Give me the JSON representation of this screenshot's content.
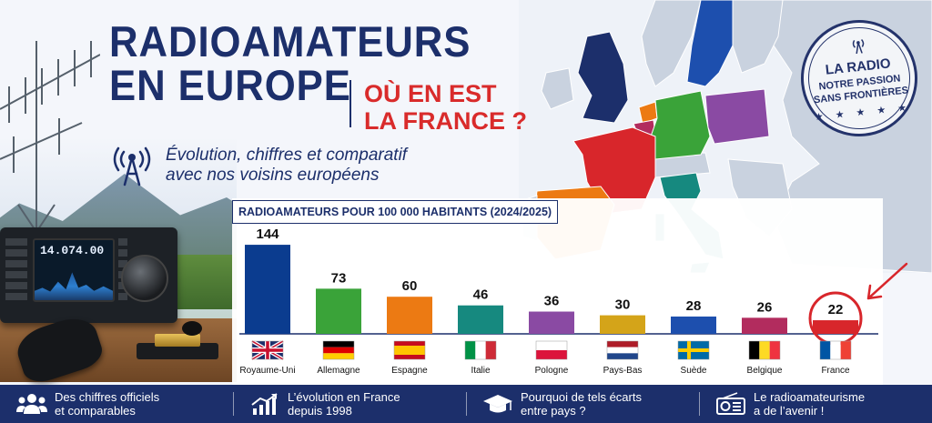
{
  "header": {
    "title_line1": "RADIOAMATEURS",
    "title_line2": "EN EUROPE",
    "subtitle_line1": "OÙ EN EST",
    "subtitle_line2": "LA FRANCE ?",
    "tagline_line1": "Évolution, chiffres et comparatif",
    "tagline_line2": "avec nos voisins européens"
  },
  "stamp": {
    "line1": "LA RADIO",
    "line2": "NOTRE PASSION",
    "line3": "SANS FRONTIÈRES",
    "stars": "★ ★ ★ ★ ★"
  },
  "radio": {
    "frequency": "14.074.00"
  },
  "chart_data": {
    "type": "bar",
    "title": "RADIOAMATEURS POUR 100 000 HABITANTS (2024/2025)",
    "categories": [
      "Royaume-Uni",
      "Allemagne",
      "Espagne",
      "Italie",
      "Pologne",
      "Pays-Bas",
      "Suède",
      "Belgique",
      "France"
    ],
    "values": [
      144,
      73,
      60,
      46,
      36,
      30,
      28,
      26,
      22
    ],
    "colors": [
      "#0b3c8f",
      "#3aa339",
      "#ec7a13",
      "#16897f",
      "#8a4aa3",
      "#d4a419",
      "#1d4fae",
      "#b22c5e",
      "#d8262b"
    ],
    "flags": [
      "flag-uk",
      "flag-de",
      "flag-es",
      "flag-it",
      "flag-pl",
      "flag-nl",
      "flag-se",
      "flag-be",
      "flag-fr"
    ],
    "highlight": "France",
    "highlight_color": "#d8262b",
    "ylim": [
      0,
      150
    ],
    "xlabel": "",
    "ylabel": "",
    "grid": false
  },
  "footer": {
    "items": [
      {
        "icon": "people-icon",
        "line1": "Des chiffres officiels",
        "line2": "et comparables"
      },
      {
        "icon": "growth-chart-icon",
        "line1": "L’évolution en France",
        "line2": "depuis 1998"
      },
      {
        "icon": "graduation-cap-icon",
        "line1": "Pourquoi de tels écarts",
        "line2": "entre pays ?"
      },
      {
        "icon": "radio-icon",
        "line1": "Le radioamateurisme",
        "line2": "a de l’avenir !"
      }
    ]
  }
}
